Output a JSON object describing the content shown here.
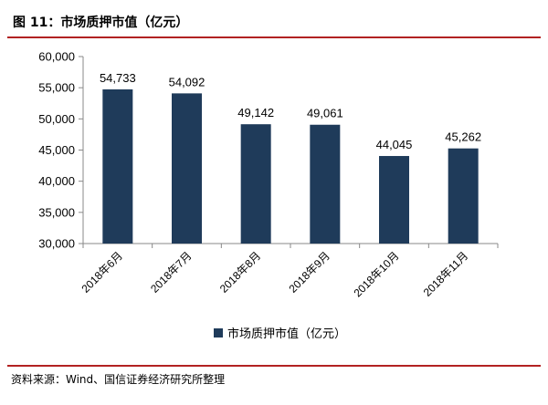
{
  "figure": {
    "label": "图 11：",
    "title": "市场质押市值（亿元）"
  },
  "source": "资料来源：Wind、国信证券经济研究所整理",
  "colors": {
    "bar": "#1f3b5a",
    "rule": "#b22222",
    "axis": "#888888"
  },
  "chart_data": {
    "type": "bar",
    "title": "",
    "xlabel": "",
    "ylabel": "",
    "categories": [
      "2018年6月",
      "2018年7月",
      "2018年8月",
      "2018年9月",
      "2018年10月",
      "2018年11月"
    ],
    "series": [
      {
        "name": "市场质押市值（亿元）",
        "values": [
          54733,
          54092,
          49142,
          49061,
          44045,
          45262
        ]
      }
    ],
    "data_labels": [
      "54,733",
      "54,092",
      "49,142",
      "49,061",
      "44,045",
      "45,262"
    ],
    "ylim": [
      30000,
      60000
    ],
    "yticks": [
      30000,
      35000,
      40000,
      45000,
      50000,
      55000,
      60000
    ],
    "ytick_labels": [
      "30,000",
      "35,000",
      "40,000",
      "45,000",
      "50,000",
      "55,000",
      "60,000"
    ],
    "grid": false,
    "legend": "bottom"
  }
}
